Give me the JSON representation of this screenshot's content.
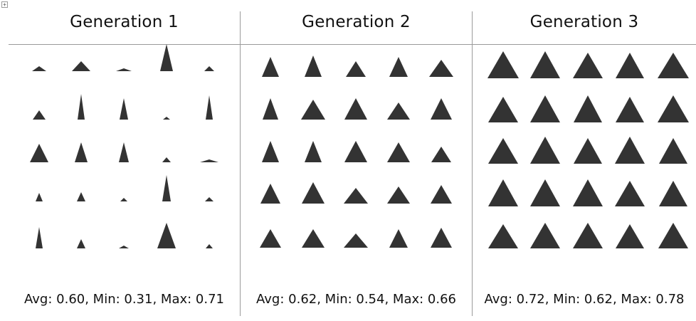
{
  "icons": {
    "anchor": "table-anchor-icon",
    "shape": "triangle-icon"
  },
  "colors": {
    "shape_fill": "#333333",
    "divider": "#9a9a9a"
  },
  "panels": [
    {
      "title": "Generation 1",
      "stats": "Avg: 0.60, Min: 0.31, Max: 0.71",
      "shapes": [
        [
          [
            20,
            7
          ],
          [
            26,
            14
          ],
          [
            22,
            4
          ],
          [
            18,
            38
          ],
          [
            14,
            7
          ]
        ],
        [
          [
            18,
            13
          ],
          [
            10,
            36
          ],
          [
            12,
            30
          ],
          [
            10,
            4
          ],
          [
            10,
            34
          ]
        ],
        [
          [
            26,
            26
          ],
          [
            18,
            28
          ],
          [
            14,
            28
          ],
          [
            12,
            7
          ],
          [
            26,
            4
          ]
        ],
        [
          [
            10,
            12
          ],
          [
            12,
            13
          ],
          [
            10,
            5
          ],
          [
            12,
            37
          ],
          [
            12,
            6
          ]
        ],
        [
          [
            10,
            30
          ],
          [
            12,
            13
          ],
          [
            14,
            4
          ],
          [
            26,
            36
          ],
          [
            10,
            6
          ]
        ]
      ]
    },
    {
      "title": "Generation 2",
      "stats": "Avg: 0.62, Min: 0.54, Max: 0.66",
      "shapes": [
        [
          [
            24,
            28
          ],
          [
            24,
            30
          ],
          [
            28,
            22
          ],
          [
            26,
            28
          ],
          [
            34,
            24
          ]
        ],
        [
          [
            22,
            30
          ],
          [
            34,
            28
          ],
          [
            32,
            30
          ],
          [
            32,
            24
          ],
          [
            30,
            30
          ]
        ],
        [
          [
            24,
            30
          ],
          [
            24,
            30
          ],
          [
            32,
            30
          ],
          [
            32,
            28
          ],
          [
            28,
            22
          ]
        ],
        [
          [
            28,
            28
          ],
          [
            32,
            30
          ],
          [
            34,
            22
          ],
          [
            32,
            24
          ],
          [
            30,
            26
          ]
        ],
        [
          [
            30,
            26
          ],
          [
            32,
            26
          ],
          [
            34,
            20
          ],
          [
            26,
            26
          ],
          [
            30,
            28
          ]
        ]
      ]
    },
    {
      "title": "Generation 3",
      "stats": "Avg: 0.72, Min: 0.62, Max: 0.78",
      "shapes": [
        [
          [
            44,
            38
          ],
          [
            42,
            38
          ],
          [
            42,
            36
          ],
          [
            40,
            36
          ],
          [
            44,
            36
          ]
        ],
        [
          [
            42,
            36
          ],
          [
            42,
            38
          ],
          [
            40,
            38
          ],
          [
            40,
            36
          ],
          [
            44,
            38
          ]
        ],
        [
          [
            42,
            36
          ],
          [
            42,
            38
          ],
          [
            40,
            36
          ],
          [
            42,
            38
          ],
          [
            40,
            36
          ]
        ],
        [
          [
            42,
            38
          ],
          [
            42,
            38
          ],
          [
            42,
            38
          ],
          [
            42,
            36
          ],
          [
            40,
            36
          ]
        ],
        [
          [
            42,
            34
          ],
          [
            42,
            36
          ],
          [
            42,
            36
          ],
          [
            40,
            34
          ],
          [
            42,
            36
          ]
        ]
      ]
    }
  ]
}
